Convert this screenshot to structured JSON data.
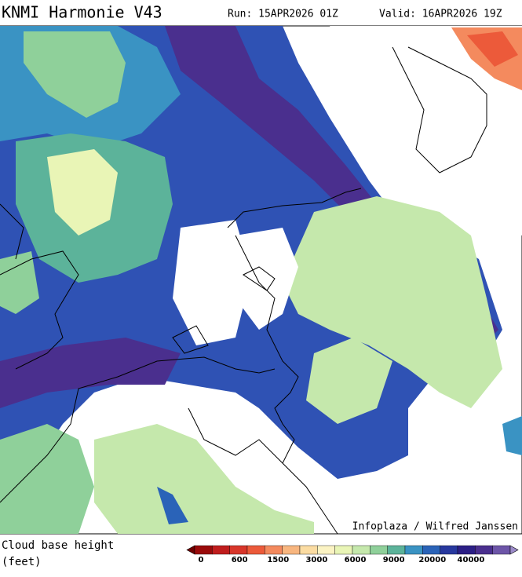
{
  "header": {
    "title": "KNMI Harmonie V43",
    "run": "Run: 15APR2026 01Z",
    "valid": "Valid: 16APR2026 19Z"
  },
  "map": {
    "credit": "Infoplaza / Wilfred Janssen"
  },
  "legend": {
    "label_line1": "Cloud base height",
    "label_line2": "(feet)",
    "ticks": [
      "0",
      "600",
      "1500",
      "3000",
      "6000",
      "9000",
      "20000",
      "40000"
    ],
    "colors": [
      "#6e0000",
      "#9a0a0a",
      "#c01d1d",
      "#d8362a",
      "#ec5a3a",
      "#f48a5e",
      "#f8b67f",
      "#fbdca2",
      "#fbf3c3",
      "#e9f5b6",
      "#c5e8ac",
      "#8fd09a",
      "#5cb39a",
      "#3a93c3",
      "#2a63b8",
      "#27389e",
      "#2c1f86",
      "#4a2f8e",
      "#6d55a8",
      "#9b8ac8"
    ]
  }
}
